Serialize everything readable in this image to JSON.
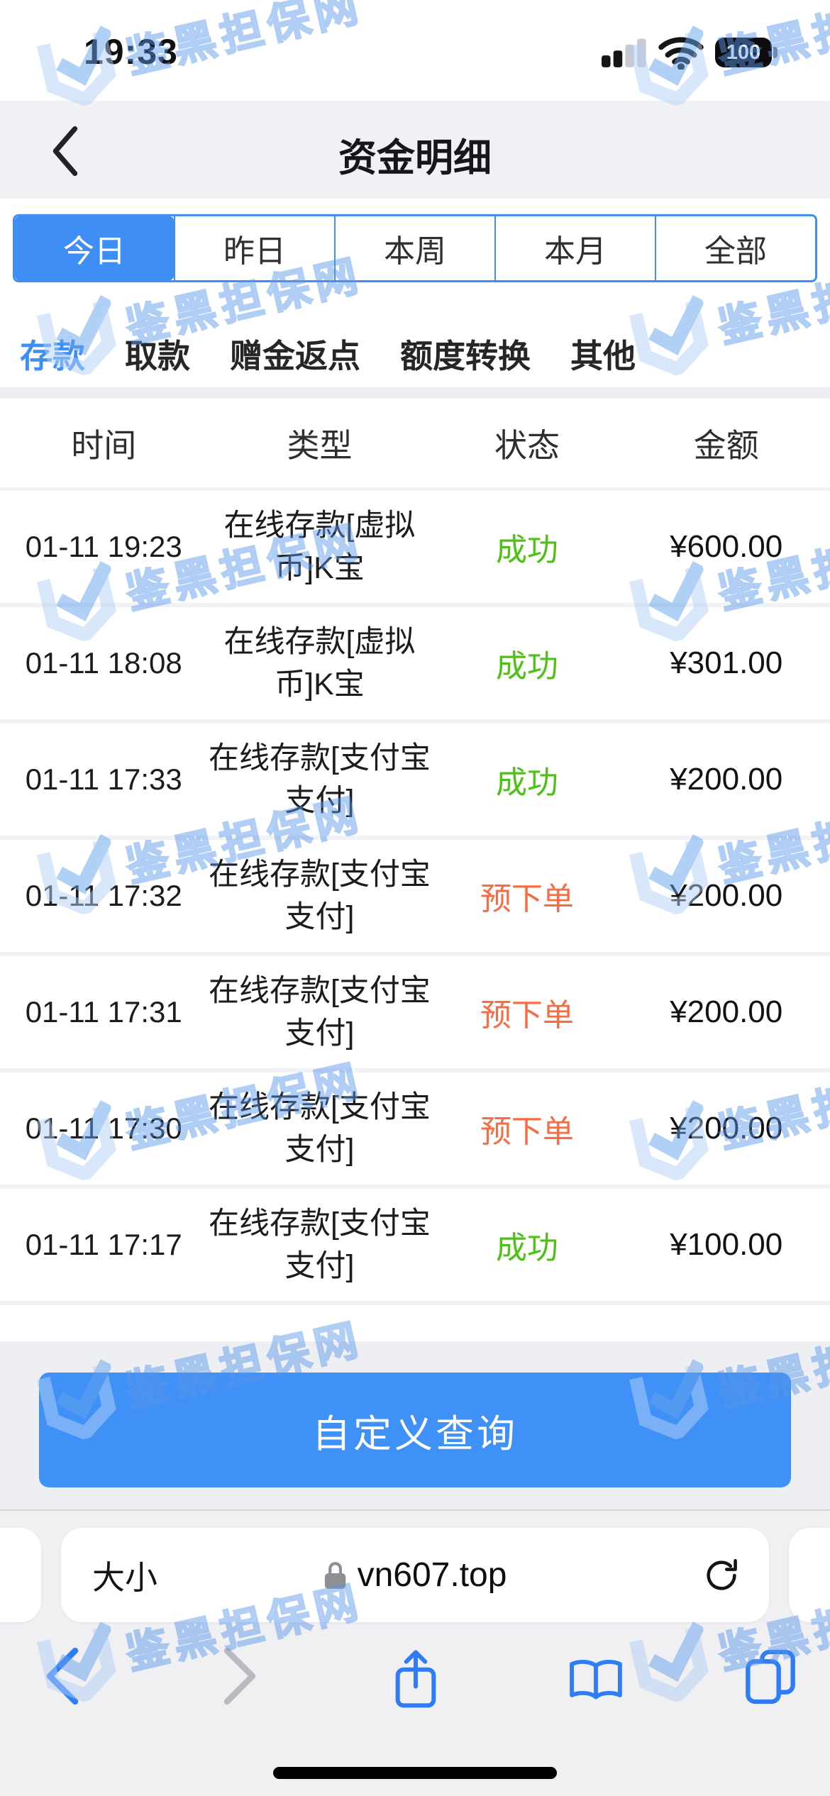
{
  "status_bar": {
    "time": "19:33",
    "battery_level": "100"
  },
  "nav": {
    "title": "资金明细"
  },
  "date_tabs": {
    "selected_index": 0,
    "items": [
      {
        "label": "今日"
      },
      {
        "label": "昨日"
      },
      {
        "label": "本周"
      },
      {
        "label": "本月"
      },
      {
        "label": "全部"
      }
    ]
  },
  "category_tabs": {
    "selected_index": 0,
    "items": [
      {
        "label": "存款"
      },
      {
        "label": "取款"
      },
      {
        "label": "赠金返点"
      },
      {
        "label": "额度转换"
      },
      {
        "label": "其他"
      }
    ]
  },
  "table": {
    "headers": [
      "时间",
      "类型",
      "状态",
      "金额"
    ],
    "rows": [
      {
        "time": "01-11 19:23",
        "type_line1": "在线存款[虚拟",
        "type_line2": "币]K宝",
        "status": "成功",
        "amount": "¥600.00"
      },
      {
        "time": "01-11 18:08",
        "type_line1": "在线存款[虚拟",
        "type_line2": "币]K宝",
        "status": "成功",
        "amount": "¥301.00"
      },
      {
        "time": "01-11 17:33",
        "type_line1": "在线存款[支付宝",
        "type_line2": "支付]",
        "status": "成功",
        "amount": "¥200.00"
      },
      {
        "time": "01-11 17:32",
        "type_line1": "在线存款[支付宝",
        "type_line2": "支付]",
        "status": "预下单",
        "amount": "¥200.00"
      },
      {
        "time": "01-11 17:31",
        "type_line1": "在线存款[支付宝",
        "type_line2": "支付]",
        "status": "预下单",
        "amount": "¥200.00"
      },
      {
        "time": "01-11 17:30",
        "type_line1": "在线存款[支付宝",
        "type_line2": "支付]",
        "status": "预下单",
        "amount": "¥200.00"
      },
      {
        "time": "01-11 17:17",
        "type_line1": "在线存款[支付宝",
        "type_line2": "支付]",
        "status": "成功",
        "amount": "¥100.00"
      }
    ]
  },
  "footer": {
    "query_button": "自定义查询"
  },
  "browser": {
    "font_size_label": "大小",
    "domain": "vn607.top"
  },
  "watermark": {
    "text": "鉴黑担保网"
  },
  "colors": {
    "accent_blue": "#3f8ef6",
    "success_green": "#4dc214",
    "pending_orange": "#f96b42",
    "nav_gray": "#f0f1f5"
  }
}
